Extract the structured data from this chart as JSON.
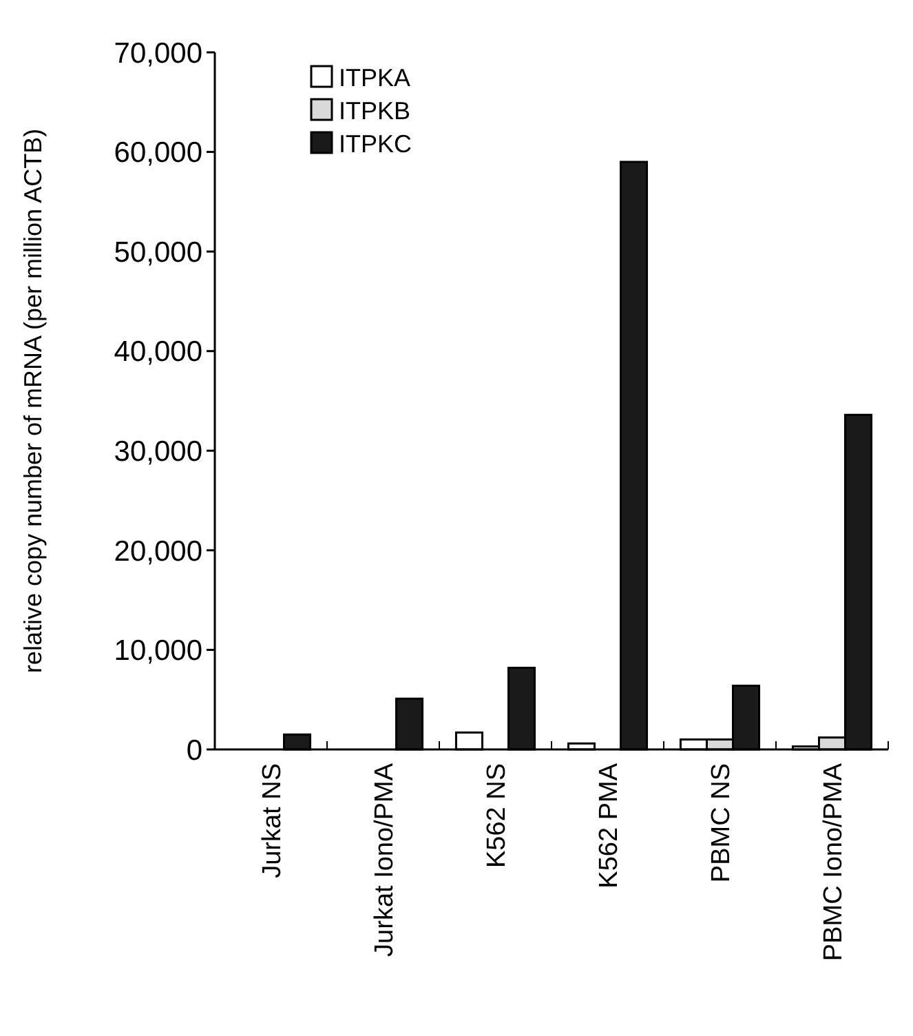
{
  "chart_data": {
    "type": "bar",
    "ylabel": "relative copy number of mRNA (per million ACTB)",
    "categories": [
      "Jurkat NS",
      "Jurkat Iono/PMA",
      "K562 NS",
      "K562 PMA",
      "PBMC NS",
      "PBMC Iono/PMA"
    ],
    "series": [
      {
        "name": "ITPKA",
        "color": "#ffffff",
        "values": [
          0,
          0,
          1700,
          600,
          1000,
          300
        ]
      },
      {
        "name": "ITPKB",
        "color": "#d9d9d9",
        "values": [
          0,
          0,
          0,
          0,
          1000,
          1200
        ]
      },
      {
        "name": "ITPKC",
        "color": "#1a1a1a",
        "values": [
          1500,
          5100,
          8200,
          59000,
          6400,
          33600
        ]
      }
    ],
    "ylim": [
      0,
      70000
    ],
    "yticks": [
      {
        "value": 0,
        "label": "0"
      },
      {
        "value": 10000,
        "label": "10,000"
      },
      {
        "value": 20000,
        "label": "20,000"
      },
      {
        "value": 30000,
        "label": "30,000"
      },
      {
        "value": 40000,
        "label": "40,000"
      },
      {
        "value": 50000,
        "label": "50,000"
      },
      {
        "value": 60000,
        "label": "60,000"
      },
      {
        "value": 70000,
        "label": "70,000"
      }
    ],
    "grid": false,
    "legend": "top left"
  }
}
